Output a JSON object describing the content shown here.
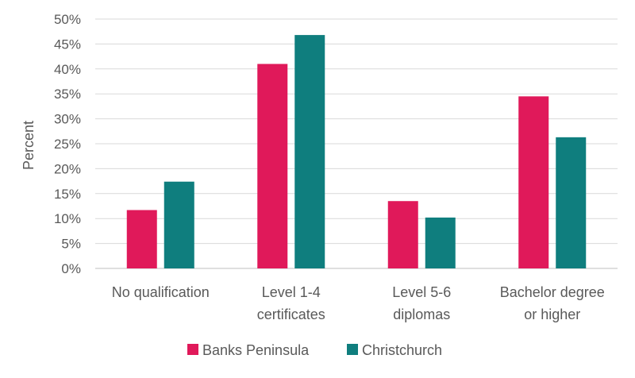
{
  "chart_data": {
    "type": "bar",
    "categories": [
      [
        "No qualification"
      ],
      [
        "Level 1-4",
        "certificates"
      ],
      [
        "Level 5-6",
        "diplomas"
      ],
      [
        "Bachelor degree",
        "or higher"
      ]
    ],
    "series": [
      {
        "name": "Banks Peninsula",
        "color": "#E0195A",
        "values": [
          11.7,
          41.0,
          13.5,
          34.5
        ]
      },
      {
        "name": "Christchurch",
        "color": "#0F7E7E",
        "values": [
          17.4,
          46.8,
          10.2,
          26.3
        ]
      }
    ],
    "ylabel": "Percent",
    "ylim": [
      0,
      50
    ],
    "yticks": [
      "0%",
      "5%",
      "10%",
      "15%",
      "20%",
      "25%",
      "30%",
      "35%",
      "40%",
      "45%",
      "50%"
    ],
    "grid": true,
    "legend_position": "bottom"
  }
}
